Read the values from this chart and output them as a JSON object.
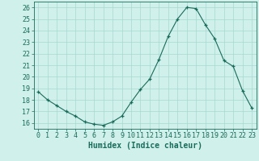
{
  "x": [
    0,
    1,
    2,
    3,
    4,
    5,
    6,
    7,
    8,
    9,
    10,
    11,
    12,
    13,
    14,
    15,
    16,
    17,
    18,
    19,
    20,
    21,
    22,
    23
  ],
  "y": [
    18.7,
    18.0,
    17.5,
    17.0,
    16.6,
    16.1,
    15.9,
    15.8,
    16.1,
    16.6,
    17.8,
    18.9,
    19.8,
    21.5,
    23.5,
    25.0,
    26.0,
    25.9,
    24.5,
    23.3,
    21.4,
    20.9,
    18.8,
    17.3
  ],
  "line_color": "#1a6b5a",
  "marker": "+",
  "marker_size": 3,
  "bg_color": "#cff0eb",
  "grid_color": "#a8d8d2",
  "axis_color": "#1a6b5a",
  "xlabel": "Humidex (Indice chaleur)",
  "xlim": [
    -0.5,
    23.5
  ],
  "ylim": [
    15.5,
    26.5
  ],
  "yticks": [
    16,
    17,
    18,
    19,
    20,
    21,
    22,
    23,
    24,
    25,
    26
  ],
  "xticks": [
    0,
    1,
    2,
    3,
    4,
    5,
    6,
    7,
    8,
    9,
    10,
    11,
    12,
    13,
    14,
    15,
    16,
    17,
    18,
    19,
    20,
    21,
    22,
    23
  ],
  "xlabel_fontsize": 7,
  "tick_fontsize": 6
}
